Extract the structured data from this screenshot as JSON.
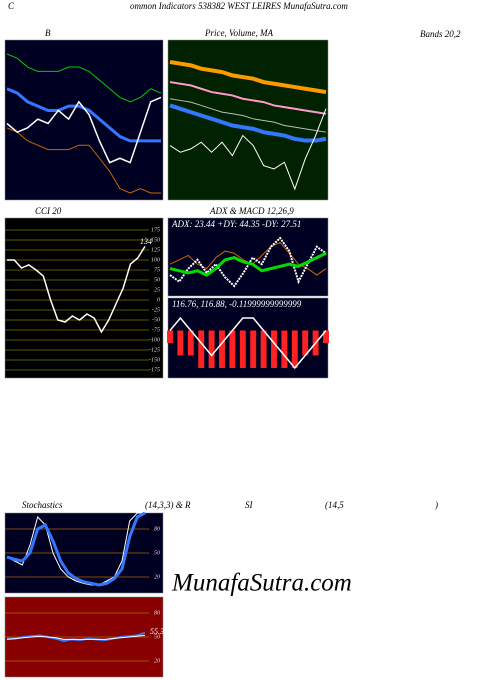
{
  "header": {
    "lead": "C",
    "title": "ommon Indicators 538382 WEST LEIRES MunafaSutra.com",
    "bands": "Bands 20,2",
    "stoch": "Stochastics",
    "stoch_params": "(14,3,3) & R",
    "rsi": "SI",
    "rsi_params": "(14,5",
    "close": ")",
    "watermark": "MunafaSutra.com"
  },
  "chart_data": [
    {
      "type": "line",
      "title": "B",
      "series": [
        {
          "color": "#00cc00",
          "values": [
            128,
            127,
            125,
            124,
            124,
            124,
            125,
            125,
            124,
            122,
            120,
            118,
            117,
            118,
            120,
            119
          ]
        },
        {
          "color": "#3377ff",
          "values": [
            120,
            119,
            117,
            116,
            115,
            115,
            116,
            116,
            115,
            113,
            111,
            109,
            108,
            108,
            108,
            108
          ]
        },
        {
          "color": "#cc6600",
          "values": [
            111,
            110,
            108,
            107,
            106,
            106,
            106,
            107,
            107,
            104,
            101,
            97,
            96,
            97,
            96,
            96
          ]
        },
        {
          "color": "#ffffff",
          "values": [
            112,
            110,
            111,
            113,
            112,
            115,
            113,
            117,
            114,
            108,
            103,
            104,
            103,
            110,
            117,
            118
          ]
        }
      ]
    },
    {
      "type": "line",
      "title": "Price, Volume, MA",
      "series": [
        {
          "color": "#ff9900",
          "values": [
            130,
            129.5,
            129,
            128,
            127.5,
            127,
            126,
            125.5,
            125,
            124,
            123.5,
            123,
            122.5,
            122,
            121.5,
            121
          ]
        },
        {
          "color": "#ff99cc",
          "values": [
            124,
            123.5,
            123,
            122,
            121,
            120.5,
            120,
            119,
            118.5,
            118,
            117,
            116.5,
            116,
            115.5,
            115,
            114.5
          ]
        },
        {
          "color": "#bbbbbb",
          "values": [
            119,
            118.5,
            118,
            117,
            116,
            115,
            114.5,
            114,
            113,
            112.5,
            112,
            111,
            110.5,
            110,
            109.5,
            109
          ]
        },
        {
          "color": "#3377ff",
          "values": [
            117,
            116,
            115,
            114,
            113,
            112,
            111,
            110.5,
            110,
            109,
            108.5,
            108,
            107,
            106.5,
            106.5,
            107
          ]
        },
        {
          "color": "#ffffff",
          "values": [
            105,
            103,
            104,
            106,
            103,
            106,
            102,
            108,
            105,
            99,
            98,
            100,
            92,
            101,
            108,
            116
          ]
        }
      ]
    },
    {
      "type": "line",
      "title": "CCI 20",
      "ylim": [
        -175,
        175
      ],
      "yticks": [
        175,
        150,
        125,
        100,
        75,
        50,
        25,
        0,
        -25,
        -50,
        -75,
        -100,
        -125,
        -150,
        -175
      ],
      "grid": true,
      "series": [
        {
          "color": "#ffffff",
          "values": [
            100,
            100,
            80,
            88,
            75,
            60,
            0,
            -50,
            -55,
            -40,
            -50,
            -35,
            -45,
            -80,
            -50,
            -10,
            30,
            90,
            105,
            134
          ]
        }
      ]
    },
    {
      "type": "line",
      "title": "ADX  & MACD 12,26,9",
      "text": "ADX: 23.44  +DY: 44.35 -DY: 27.51",
      "series": [
        {
          "color": "#cc6600",
          "values": [
            30,
            32,
            34,
            30,
            28,
            33,
            36,
            35,
            32,
            30,
            34,
            38,
            40,
            35,
            30,
            28,
            25,
            28
          ]
        },
        {
          "color": "#ffffff",
          "values": [
            25,
            22,
            28,
            32,
            26,
            30,
            24,
            20,
            26,
            33,
            30,
            38,
            42,
            36,
            22,
            30,
            38,
            35
          ]
        },
        {
          "color": "#00dd00",
          "values": [
            28,
            27,
            26,
            27,
            25,
            28,
            32,
            33,
            31,
            30,
            27,
            28,
            29,
            30,
            29,
            31,
            33,
            35
          ]
        }
      ]
    },
    {
      "type": "macd",
      "text": "116.76,  116.88,  -0.11999999999999",
      "bar_color": "#ff2222",
      "bars": [
        -1,
        -2,
        -2,
        -3,
        -3,
        -3,
        -3,
        -3,
        -3,
        -3,
        -3,
        -3,
        -3,
        -2,
        -2,
        -1
      ],
      "series": [
        {
          "color": "#ffffff",
          "values": [
            0,
            1,
            0,
            -1,
            -2,
            -1,
            0,
            1,
            1,
            0,
            -1,
            -2,
            -3,
            -2,
            -1,
            0
          ]
        }
      ]
    },
    {
      "type": "line",
      "ylim": [
        0,
        100
      ],
      "yticks": [
        80,
        50,
        20
      ],
      "grid": true,
      "series": [
        {
          "color": "#ffffff",
          "values": [
            45,
            40,
            35,
            60,
            95,
            85,
            50,
            30,
            20,
            15,
            12,
            10,
            10,
            15,
            20,
            40,
            90,
            100,
            100
          ]
        },
        {
          "color": "#3377ff",
          "values": [
            45,
            42,
            40,
            50,
            80,
            85,
            65,
            40,
            25,
            18,
            14,
            12,
            10,
            12,
            18,
            30,
            70,
            95,
            100
          ]
        }
      ]
    },
    {
      "type": "line",
      "ylim": [
        0,
        100
      ],
      "yticks": [
        80,
        50,
        20
      ],
      "grid": true,
      "series": [
        {
          "color": "#3377ff",
          "values": [
            48,
            48,
            50,
            51,
            52,
            50,
            48,
            45,
            47,
            46,
            48,
            47,
            46,
            48,
            50,
            51,
            52,
            55.39
          ]
        },
        {
          "color": "#ffffff",
          "values": [
            47,
            48,
            49,
            50,
            51,
            50,
            49,
            47,
            47,
            47,
            47,
            47,
            47,
            48,
            49,
            50,
            51,
            52
          ]
        }
      ]
    }
  ]
}
